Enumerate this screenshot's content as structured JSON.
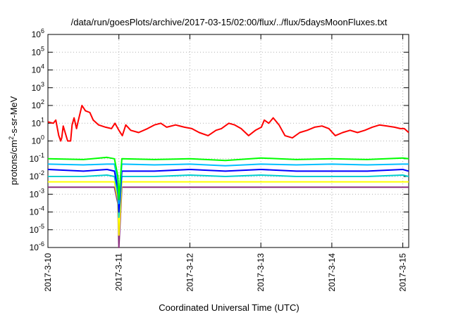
{
  "chart_data": {
    "type": "line",
    "title": "/data/run/goesPlots/archive/2017-03-15/02:00/flux/../flux/5daysMoonFluxes.txt",
    "xlabel": "Coordinated Universal Time (UTC)",
    "ylabel": "protons/cm²-s-sr-MeV",
    "ylabel_parts": [
      "protons/cm",
      "2",
      "-s-sr-MeV"
    ],
    "scale": {
      "x": "time-days",
      "y": "log10"
    },
    "xlim": [
      "2017-03-10T00:00",
      "2017-03-15T02:00"
    ],
    "ylim": [
      1e-06,
      1000000
    ],
    "grid": true,
    "x_tick_labels": [
      "2017-3-10",
      "2017-3-11",
      "2017-3-12",
      "2017-3-13",
      "2017-3-14",
      "2017-3-15"
    ],
    "y_tick_labels": [
      {
        "base": "10",
        "exp": "-6"
      },
      {
        "base": "10",
        "exp": "-5"
      },
      {
        "base": "10",
        "exp": "-4"
      },
      {
        "base": "10",
        "exp": "-3"
      },
      {
        "base": "10",
        "exp": "-2"
      },
      {
        "base": "10",
        "exp": "-1"
      },
      {
        "base": "10",
        "exp": "0"
      },
      {
        "base": "10",
        "exp": "1"
      },
      {
        "base": "10",
        "exp": "2"
      },
      {
        "base": "10",
        "exp": "3"
      },
      {
        "base": "10",
        "exp": "4"
      },
      {
        "base": "10",
        "exp": "5"
      },
      {
        "base": "10",
        "exp": "6"
      }
    ],
    "series": [
      {
        "color": "#ff0000",
        "x": [
          "2017-03-10T00:00",
          "2017-03-10T01:50",
          "2017-03-10T02:40",
          "2017-03-10T03:40",
          "2017-03-10T04:20",
          "2017-03-10T04:40",
          "2017-03-10T05:10",
          "2017-03-10T06:40",
          "2017-03-10T07:40",
          "2017-03-10T08:10",
          "2017-03-10T08:50",
          "2017-03-10T09:40",
          "2017-03-10T10:10",
          "2017-03-10T11:30",
          "2017-03-10T12:40",
          "2017-03-10T14:10",
          "2017-03-10T15:20",
          "2017-03-10T17:10",
          "2017-03-10T19:30",
          "2017-03-10T21:30",
          "2017-03-10T22:40",
          "2017-03-11T00:00",
          "2017-03-11T01:10",
          "2017-03-11T02:20",
          "2017-03-11T04:00",
          "2017-03-11T06:40",
          "2017-03-11T09:40",
          "2017-03-11T12:00",
          "2017-03-11T14:10",
          "2017-03-11T16:10",
          "2017-03-11T19:10",
          "2017-03-11T22:10",
          "2017-03-12T00:40",
          "2017-03-12T03:10",
          "2017-03-12T06:10",
          "2017-03-12T08:50",
          "2017-03-12T10:40",
          "2017-03-12T13:10",
          "2017-03-12T15:10",
          "2017-03-12T17:20",
          "2017-03-12T19:50",
          "2017-03-12T22:10",
          "2017-03-13T00:10",
          "2017-03-13T01:10",
          "2017-03-13T02:40",
          "2017-03-13T04:10",
          "2017-03-13T06:10",
          "2017-03-13T08:10",
          "2017-03-13T10:40",
          "2017-03-13T13:10",
          "2017-03-13T15:40",
          "2017-03-13T18:10",
          "2017-03-13T20:40",
          "2017-03-13T23:00",
          "2017-03-14T01:10",
          "2017-03-14T03:40",
          "2017-03-14T06:10",
          "2017-03-14T08:40",
          "2017-03-14T11:10",
          "2017-03-14T13:40",
          "2017-03-14T16:10",
          "2017-03-14T18:40",
          "2017-03-14T21:10",
          "2017-03-14T23:10",
          "2017-03-15T00:30",
          "2017-03-15T02:00"
        ],
        "values": [
          12,
          10,
          15,
          2,
          1,
          1.5,
          7,
          1,
          1,
          8,
          20,
          5,
          12,
          100,
          50,
          40,
          15,
          8,
          6,
          5,
          10,
          4,
          2,
          8,
          4,
          3,
          5,
          8,
          10,
          6,
          8,
          6,
          5,
          3,
          2,
          4,
          5,
          10,
          8,
          5,
          2,
          4,
          6,
          15,
          10,
          20,
          8,
          2,
          1.5,
          3,
          4,
          6,
          7,
          5,
          2,
          3,
          4,
          3,
          4,
          6,
          8,
          7,
          6,
          5,
          5,
          3
        ]
      },
      {
        "color": "#00ff00",
        "x": [
          "2017-03-10T00:00",
          "2017-03-10T12:00",
          "2017-03-10T20:00",
          "2017-03-10T22:30",
          "2017-03-10T23:40",
          "2017-03-11T00:00",
          "2017-03-11T01:00",
          "2017-03-11T12:00",
          "2017-03-12T00:00",
          "2017-03-12T12:00",
          "2017-03-13T00:00",
          "2017-03-13T12:00",
          "2017-03-14T00:00",
          "2017-03-14T12:00",
          "2017-03-15T00:00",
          "2017-03-15T02:00"
        ],
        "values": [
          0.1,
          0.09,
          0.12,
          0.1,
          0.01,
          0.0005,
          0.1,
          0.09,
          0.1,
          0.08,
          0.11,
          0.09,
          0.1,
          0.09,
          0.11,
          0.1
        ]
      },
      {
        "color": "#00bfff",
        "x": [
          "2017-03-10T00:00",
          "2017-03-10T12:00",
          "2017-03-10T20:00",
          "2017-03-10T22:30",
          "2017-03-10T23:40",
          "2017-03-11T00:00",
          "2017-03-11T01:00",
          "2017-03-11T12:00",
          "2017-03-12T00:00",
          "2017-03-12T12:00",
          "2017-03-13T00:00",
          "2017-03-13T12:00",
          "2017-03-14T00:00",
          "2017-03-14T12:00",
          "2017-03-15T00:00",
          "2017-03-15T02:00"
        ],
        "values": [
          0.05,
          0.045,
          0.05,
          0.05,
          0.005,
          0.0003,
          0.05,
          0.045,
          0.05,
          0.04,
          0.05,
          0.045,
          0.05,
          0.045,
          0.05,
          0.05
        ]
      },
      {
        "color": "#0000ff",
        "x": [
          "2017-03-10T00:00",
          "2017-03-10T12:00",
          "2017-03-10T20:00",
          "2017-03-10T22:30",
          "2017-03-10T23:40",
          "2017-03-11T00:00",
          "2017-03-11T01:00",
          "2017-03-11T12:00",
          "2017-03-12T00:00",
          "2017-03-12T12:00",
          "2017-03-13T00:00",
          "2017-03-13T12:00",
          "2017-03-14T00:00",
          "2017-03-14T12:00",
          "2017-03-15T00:00",
          "2017-03-15T02:00"
        ],
        "values": [
          0.025,
          0.02,
          0.025,
          0.02,
          0.002,
          0.0001,
          0.02,
          0.02,
          0.025,
          0.02,
          0.025,
          0.02,
          0.02,
          0.02,
          0.025,
          0.02
        ]
      },
      {
        "color": "#00ced1",
        "x": [
          "2017-03-10T00:00",
          "2017-03-10T12:00",
          "2017-03-10T20:00",
          "2017-03-10T22:30",
          "2017-03-10T23:40",
          "2017-03-11T00:00",
          "2017-03-11T01:00",
          "2017-03-11T12:00",
          "2017-03-12T00:00",
          "2017-03-12T12:00",
          "2017-03-13T00:00",
          "2017-03-13T12:00",
          "2017-03-14T00:00",
          "2017-03-14T12:00",
          "2017-03-15T00:00",
          "2017-03-15T02:00"
        ],
        "values": [
          0.01,
          0.01,
          0.012,
          0.01,
          0.001,
          5e-05,
          0.01,
          0.01,
          0.012,
          0.01,
          0.012,
          0.01,
          0.01,
          0.01,
          0.012,
          0.01
        ]
      },
      {
        "color": "#ffff00",
        "x": [
          "2017-03-10T00:00",
          "2017-03-10T12:00",
          "2017-03-10T20:00",
          "2017-03-10T22:30",
          "2017-03-10T23:40",
          "2017-03-11T00:00",
          "2017-03-11T01:00",
          "2017-03-11T12:00",
          "2017-03-12T00:00",
          "2017-03-12T12:00",
          "2017-03-13T00:00",
          "2017-03-13T12:00",
          "2017-03-14T00:00",
          "2017-03-14T12:00",
          "2017-03-15T00:00",
          "2017-03-15T02:00"
        ],
        "values": [
          0.005,
          0.005,
          0.005,
          0.005,
          0.0005,
          5e-06,
          0.005,
          0.005,
          0.005,
          0.005,
          0.005,
          0.005,
          0.005,
          0.005,
          0.005,
          0.005
        ]
      },
      {
        "color": "#8b2f7f",
        "x": [
          "2017-03-10T00:00",
          "2017-03-10T12:00",
          "2017-03-10T20:00",
          "2017-03-10T22:30",
          "2017-03-10T23:40",
          "2017-03-11T00:00",
          "2017-03-11T01:00",
          "2017-03-11T12:00",
          "2017-03-12T00:00",
          "2017-03-12T12:00",
          "2017-03-13T00:00",
          "2017-03-13T12:00",
          "2017-03-14T00:00",
          "2017-03-14T12:00",
          "2017-03-15T00:00",
          "2017-03-15T02:00"
        ],
        "values": [
          0.0025,
          0.0025,
          0.0025,
          0.0025,
          0.0003,
          1e-06,
          0.0025,
          0.0025,
          0.0025,
          0.0025,
          0.0025,
          0.0025,
          0.0025,
          0.0025,
          0.0025,
          0.0025
        ]
      }
    ]
  }
}
